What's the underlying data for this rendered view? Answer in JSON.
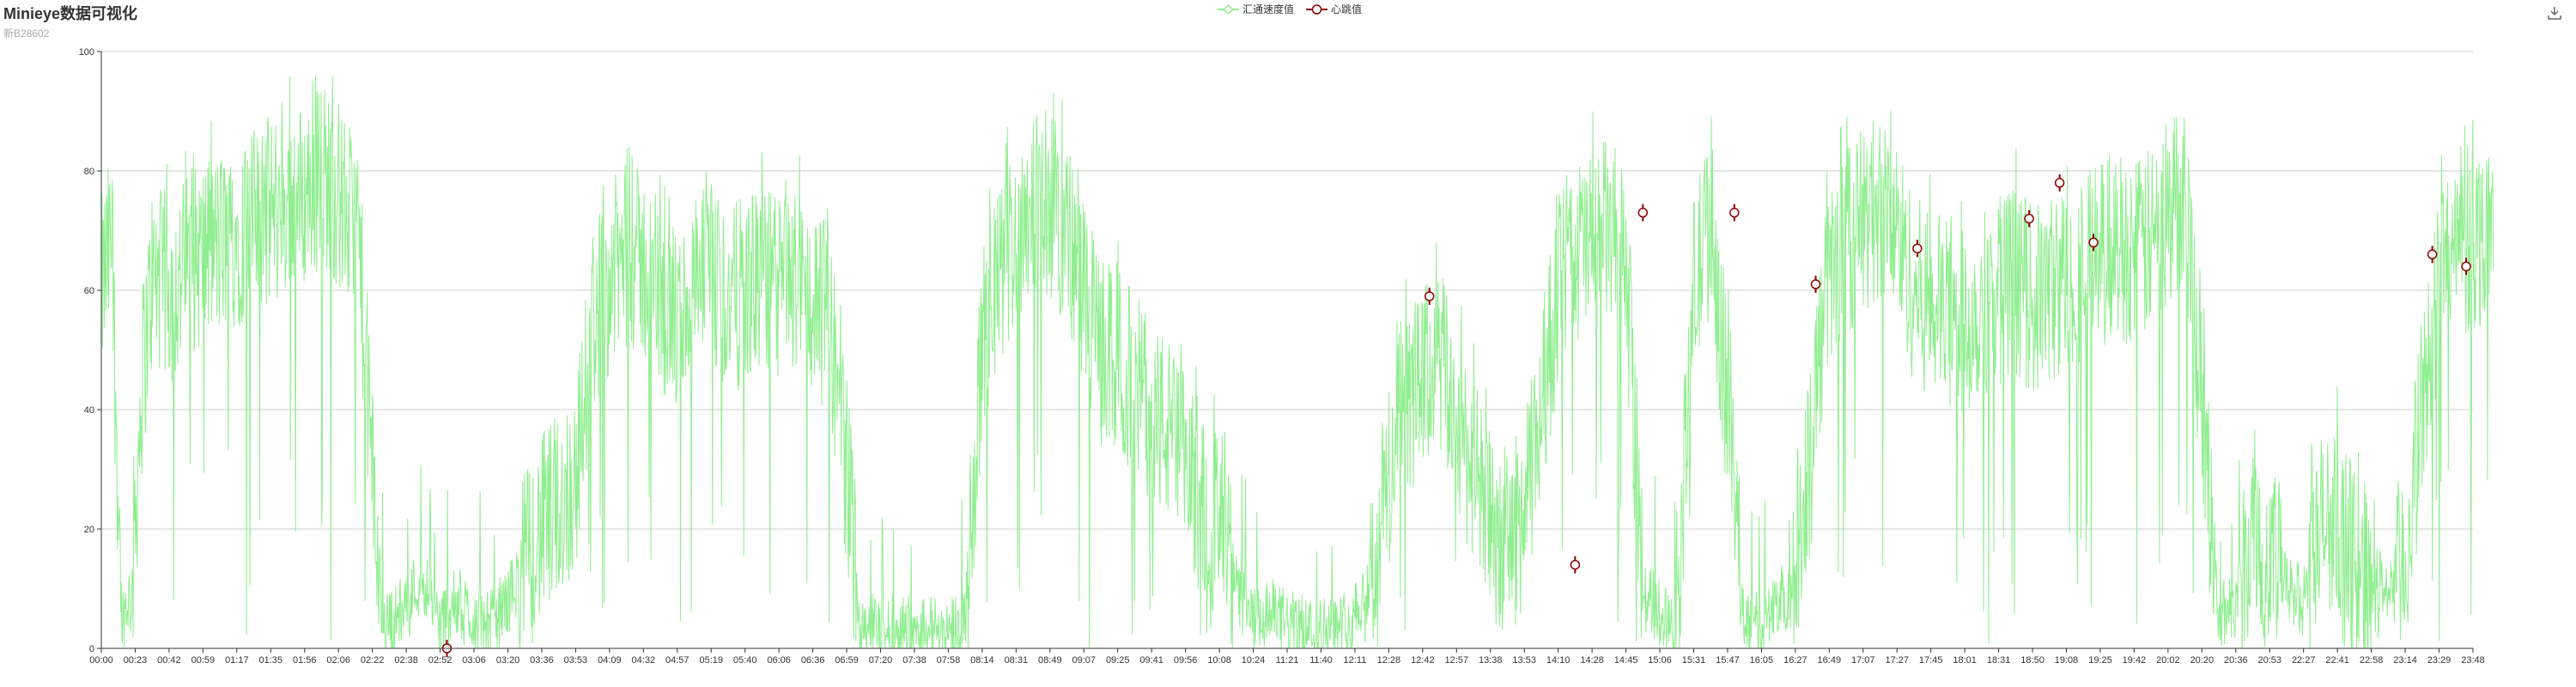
{
  "header": {
    "title": "Minieye数据可视化",
    "subtitle": "新B28602"
  },
  "legend": {
    "items": [
      {
        "label": "汇通速度值",
        "color": "#90ee90",
        "symbol": "hollow-diamond-icon"
      },
      {
        "label": "心跳值",
        "color": "#8b0000",
        "symbol": "hollow-circle-icon"
      }
    ]
  },
  "toolbox": {
    "icon": "download-icon",
    "color": "#666666"
  },
  "colors": {
    "speed": "#90ee90",
    "heartbeat": "#8b0000",
    "grid": "#cccccc",
    "axis": "#333333"
  },
  "chart_data": {
    "type": "line",
    "ylim": [
      0,
      100
    ],
    "yticks": [
      0,
      20,
      40,
      60,
      80,
      100
    ],
    "grid": true,
    "legend_position": "top-center",
    "x_tick_labels": [
      "00:00",
      "00:23",
      "00:42",
      "00:59",
      "01:17",
      "01:35",
      "01:56",
      "02:06",
      "02:22",
      "02:38",
      "02:52",
      "03:06",
      "03:20",
      "03:36",
      "03:53",
      "04:09",
      "04:32",
      "04:57",
      "05:19",
      "05:40",
      "06:06",
      "06:36",
      "06:59",
      "07:20",
      "07:38",
      "07:58",
      "08:14",
      "08:31",
      "08:49",
      "09:07",
      "09:25",
      "09:41",
      "09:56",
      "10:08",
      "10:24",
      "11:21",
      "11:40",
      "12:11",
      "12:28",
      "12:42",
      "12:57",
      "13:38",
      "13:53",
      "14:10",
      "14:28",
      "14:45",
      "15:06",
      "15:31",
      "15:47",
      "16:05",
      "16:27",
      "16:49",
      "17:07",
      "17:27",
      "17:45",
      "18:01",
      "18:31",
      "18:50",
      "19:08",
      "19:25",
      "19:42",
      "20:02",
      "20:20",
      "20:36",
      "20:53",
      "22:27",
      "22:41",
      "22:58",
      "23:14",
      "23:29",
      "23:48"
    ],
    "series": [
      {
        "name": "汇通速度值",
        "style": "line",
        "profile": [
          [
            0.0,
            60
          ],
          [
            0.3,
            68
          ],
          [
            0.6,
            5
          ],
          [
            0.9,
            10
          ],
          [
            1.2,
            45
          ],
          [
            1.5,
            62
          ],
          [
            2.2,
            60
          ],
          [
            2.5,
            64
          ],
          [
            3.0,
            66
          ],
          [
            3.6,
            68
          ],
          [
            4.2,
            70
          ],
          [
            4.8,
            73
          ],
          [
            5.4,
            74
          ],
          [
            6.0,
            76
          ],
          [
            6.5,
            80
          ],
          [
            7.0,
            76
          ],
          [
            7.3,
            72
          ],
          [
            7.6,
            68
          ],
          [
            8.0,
            30
          ],
          [
            8.3,
            5
          ],
          [
            8.6,
            4
          ],
          [
            9.0,
            8
          ],
          [
            9.5,
            12
          ],
          [
            10.0,
            4
          ],
          [
            10.5,
            8
          ],
          [
            11.0,
            5
          ],
          [
            11.5,
            4
          ],
          [
            12.0,
            8
          ],
          [
            12.5,
            14
          ],
          [
            13.0,
            20
          ],
          [
            13.5,
            24
          ],
          [
            14.0,
            28
          ],
          [
            14.5,
            55
          ],
          [
            15.0,
            62
          ],
          [
            15.5,
            66
          ],
          [
            16.0,
            64
          ],
          [
            16.5,
            58
          ],
          [
            17.0,
            54
          ],
          [
            17.5,
            60
          ],
          [
            18.0,
            62
          ],
          [
            18.5,
            58
          ],
          [
            19.0,
            60
          ],
          [
            19.5,
            62
          ],
          [
            20.0,
            60
          ],
          [
            20.5,
            62
          ],
          [
            21.0,
            58
          ],
          [
            21.5,
            55
          ],
          [
            22.0,
            30
          ],
          [
            22.4,
            5
          ],
          [
            23.0,
            3
          ],
          [
            23.5,
            3
          ],
          [
            24.0,
            4
          ],
          [
            24.5,
            3
          ],
          [
            25.0,
            3
          ],
          [
            25.5,
            5
          ],
          [
            26.0,
            50
          ],
          [
            26.5,
            62
          ],
          [
            27.0,
            70
          ],
          [
            27.5,
            76
          ],
          [
            28.0,
            74
          ],
          [
            28.5,
            70
          ],
          [
            29.0,
            58
          ],
          [
            29.5,
            50
          ],
          [
            30.0,
            48
          ],
          [
            30.5,
            44
          ],
          [
            31.0,
            40
          ],
          [
            31.5,
            36
          ],
          [
            32.0,
            30
          ],
          [
            32.5,
            24
          ],
          [
            33.0,
            20
          ],
          [
            33.5,
            10
          ],
          [
            34.0,
            4
          ],
          [
            34.5,
            6
          ],
          [
            35.0,
            4
          ],
          [
            35.5,
            3
          ],
          [
            36.0,
            3
          ],
          [
            36.5,
            3
          ],
          [
            37.0,
            6
          ],
          [
            37.5,
            12
          ],
          [
            38.0,
            30
          ],
          [
            38.5,
            40
          ],
          [
            39.0,
            45
          ],
          [
            39.5,
            48
          ],
          [
            40.0,
            38
          ],
          [
            40.5,
            30
          ],
          [
            41.0,
            20
          ],
          [
            41.5,
            18
          ],
          [
            42.0,
            22
          ],
          [
            42.5,
            40
          ],
          [
            43.0,
            60
          ],
          [
            43.5,
            66
          ],
          [
            44.0,
            68
          ],
          [
            44.5,
            70
          ],
          [
            45.0,
            65
          ],
          [
            45.5,
            10
          ],
          [
            46.0,
            6
          ],
          [
            46.5,
            5
          ],
          [
            47.0,
            60
          ],
          [
            47.5,
            72
          ],
          [
            48.0,
            40
          ],
          [
            48.5,
            5
          ],
          [
            49.0,
            3
          ],
          [
            49.5,
            8
          ],
          [
            50.0,
            10
          ],
          [
            50.5,
            40
          ],
          [
            51.0,
            62
          ],
          [
            51.5,
            68
          ],
          [
            52.0,
            72
          ],
          [
            52.5,
            74
          ],
          [
            53.0,
            70
          ],
          [
            53.5,
            60
          ],
          [
            54.0,
            58
          ],
          [
            54.5,
            56
          ],
          [
            55.0,
            54
          ],
          [
            55.5,
            58
          ],
          [
            56.0,
            60
          ],
          [
            56.5,
            62
          ],
          [
            57.0,
            58
          ],
          [
            57.5,
            60
          ],
          [
            58.0,
            62
          ],
          [
            58.5,
            64
          ],
          [
            59.0,
            66
          ],
          [
            59.5,
            68
          ],
          [
            60.0,
            66
          ],
          [
            60.5,
            68
          ],
          [
            61.0,
            72
          ],
          [
            61.5,
            78
          ],
          [
            62.0,
            40
          ],
          [
            62.5,
            5
          ],
          [
            63.0,
            8
          ],
          [
            63.5,
            22
          ],
          [
            64.0,
            16
          ],
          [
            64.5,
            10
          ],
          [
            65.0,
            8
          ],
          [
            65.5,
            20
          ],
          [
            66.0,
            22
          ],
          [
            66.5,
            14
          ],
          [
            67.0,
            12
          ],
          [
            67.5,
            10
          ],
          [
            68.0,
            14
          ],
          [
            68.5,
            40
          ],
          [
            69.0,
            62
          ],
          [
            69.5,
            66
          ],
          [
            70.0,
            68
          ],
          [
            70.6,
            72
          ]
        ]
      },
      {
        "name": "心跳值",
        "style": "markers",
        "points": [
          [
            10.2,
            0
          ],
          [
            39.2,
            59
          ],
          [
            43.5,
            14
          ],
          [
            45.5,
            73
          ],
          [
            48.2,
            73
          ],
          [
            50.6,
            61
          ],
          [
            53.6,
            67
          ],
          [
            56.9,
            72
          ],
          [
            57.8,
            78
          ],
          [
            58.8,
            68
          ],
          [
            68.8,
            66
          ],
          [
            69.8,
            64
          ]
        ]
      }
    ]
  }
}
